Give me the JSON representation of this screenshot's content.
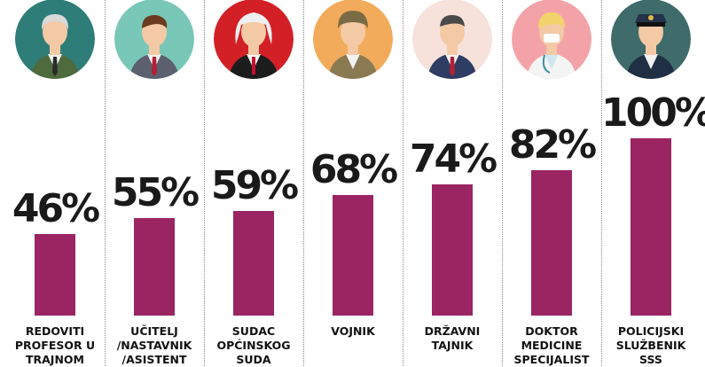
{
  "chart_data": {
    "type": "bar",
    "ylim": [
      0,
      100
    ],
    "bar_color": "#9B2463",
    "categories": [
      [
        "REDOVITI",
        "PROFESOR U",
        "TRAJNOM"
      ],
      [
        "UČITELJ",
        "/NASTAVNIK",
        "/ASISTENT"
      ],
      [
        "SUDAC",
        "OPĆINSKOG",
        "SUDA"
      ],
      [
        "VOJNIK"
      ],
      [
        "DRŽAVNI",
        "TAJNIK"
      ],
      [
        "DOKTOR",
        "MEDICINE",
        "SPECIJALIST"
      ],
      [
        "POLICIJSKI",
        "SLUŽBENIK",
        "SSS"
      ]
    ],
    "values": [
      46,
      55,
      59,
      68,
      74,
      82,
      100
    ],
    "data_labels": [
      "46%",
      "55%",
      "59%",
      "68%",
      "74%",
      "82%",
      "100%"
    ],
    "icons": [
      {
        "name": "professor-icon",
        "bg": "#2E7D78"
      },
      {
        "name": "teacher-icon",
        "bg": "#79C7B7"
      },
      {
        "name": "judge-icon",
        "bg": "#D32027"
      },
      {
        "name": "soldier-icon",
        "bg": "#F2AB5A"
      },
      {
        "name": "state-secretary-icon",
        "bg": "#F6E1DB"
      },
      {
        "name": "doctor-icon",
        "bg": "#F3A3A7"
      },
      {
        "name": "police-officer-icon",
        "bg": "#3F6B6B"
      }
    ]
  }
}
